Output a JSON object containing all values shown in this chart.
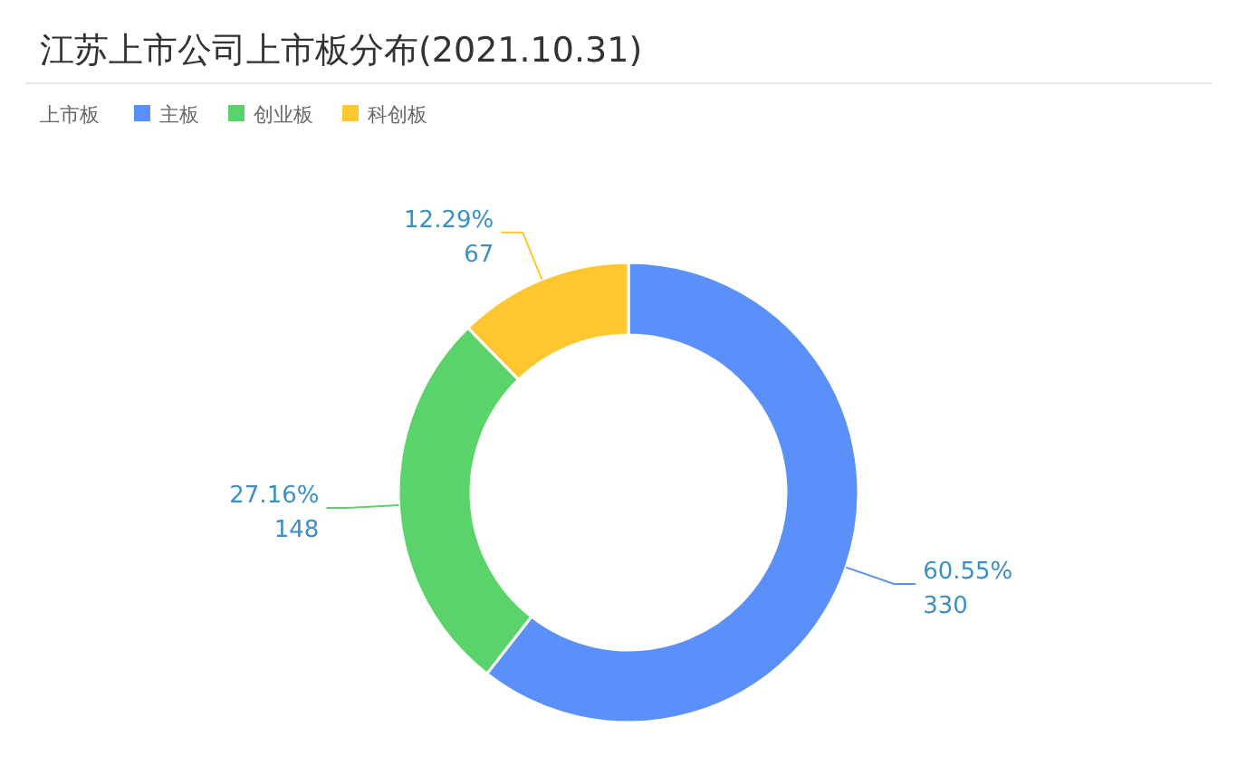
{
  "chart_data": {
    "type": "donut",
    "title": "江苏上市公司上市板分布(2021.10.31)",
    "legend_title": "上市板",
    "legend": "top left",
    "categories": [
      "主板",
      "创业板",
      "科创板"
    ],
    "values": [
      330,
      148,
      67
    ],
    "colors": [
      "#5b8ff9",
      "#5ad46a",
      "#ffc62f"
    ],
    "value_labels": [
      "60.55%\n330",
      "27.16%\n148",
      "12.29%\n67"
    ]
  }
}
